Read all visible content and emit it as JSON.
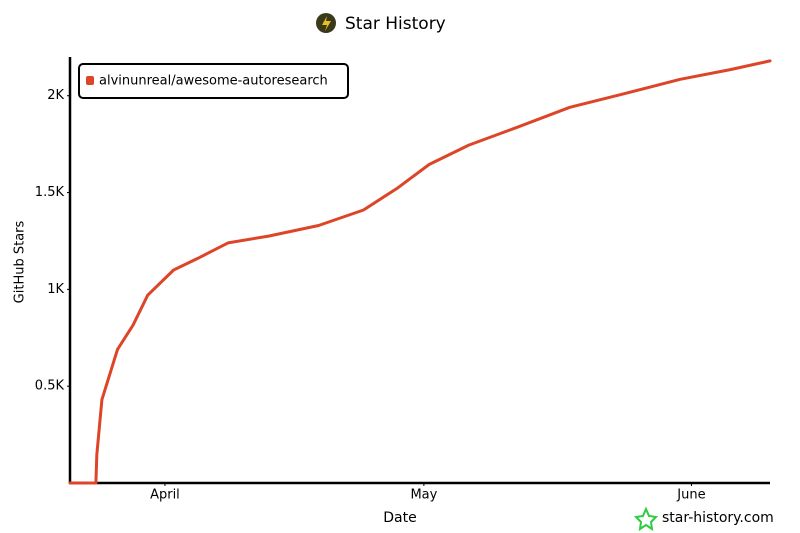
{
  "chart_data": {
    "type": "line",
    "title": "Star History",
    "xlabel": "Date",
    "ylabel": "GitHub Stars",
    "x": [
      80,
      83,
      83.1,
      83.7,
      84.6,
      85.5,
      87.3,
      89,
      92,
      94.8,
      98.3,
      103,
      108.8,
      114,
      118,
      121.6,
      126.2,
      132,
      137.9,
      143.7,
      150.7,
      156.5,
      161.1
    ],
    "series": [
      {
        "name": "alvinunreal/awesome-autoresearch",
        "color": "#dd4528",
        "values": [
          0,
          0,
          145,
          430,
          560,
          690,
          815,
          970,
          1100,
          1160,
          1240,
          1275,
          1330,
          1410,
          1525,
          1645,
          1745,
          1840,
          1940,
          2005,
          2085,
          2135,
          2180
        ]
      }
    ],
    "xlim": [
      80,
      161.1
    ],
    "xticks": [
      {
        "value": 91,
        "label": "April"
      },
      {
        "value": 121,
        "label": "May"
      },
      {
        "value": 152,
        "label": "June"
      }
    ],
    "ylim": [
      0,
      2200
    ],
    "yticks": [
      {
        "value": 500,
        "label": "0.5K"
      },
      {
        "value": 1000,
        "label": "1K"
      },
      {
        "value": 1500,
        "label": "1.5K"
      },
      {
        "value": 2000,
        "label": "2K"
      }
    ],
    "grid": false,
    "legend": "top-left",
    "watermark": "star-history.com"
  }
}
